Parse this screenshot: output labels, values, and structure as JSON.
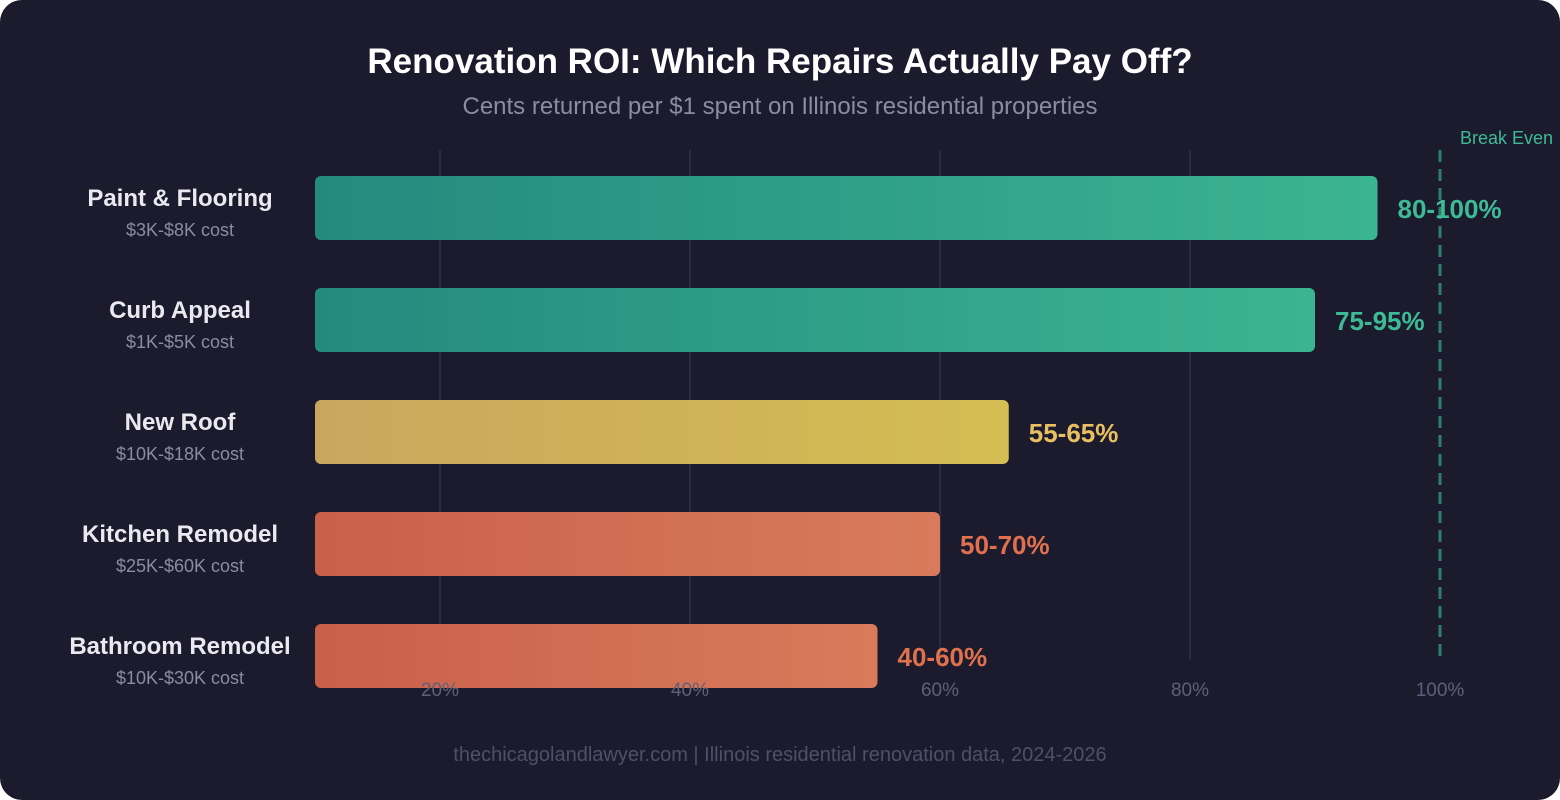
{
  "chart_data": {
    "type": "bar",
    "orientation": "horizontal",
    "title": "Renovation ROI: Which Repairs Actually Pay Off?",
    "subtitle": "Cents returned per $1 spent on Illinois residential properties",
    "categories": [
      "Paint & Flooring",
      "Curb Appeal",
      "New Roof",
      "Kitchen Remodel",
      "Bathroom Remodel"
    ],
    "cost_labels": [
      "$3K-$8K cost",
      "$1K-$5K cost",
      "$10K-$18K cost",
      "$25K-$60K cost",
      "$10K-$30K cost"
    ],
    "values": [
      95,
      90,
      65.5,
      60,
      55
    ],
    "data_labels": [
      "80-100%",
      "75-95%",
      "55-65%",
      "50-70%",
      "40-60%"
    ],
    "bar_start": 10,
    "colors": [
      "#3dbb94",
      "#3dbb94",
      "#e8c062",
      "#e0714f",
      "#e0714f"
    ],
    "gradients": [
      [
        "#248a7e",
        "#3bb492"
      ],
      [
        "#248a7e",
        "#3bb492"
      ],
      [
        "#c9a75e",
        "#d4bd52"
      ],
      [
        "#c9604a",
        "#d87b5b"
      ],
      [
        "#c9604a",
        "#d87b5b"
      ]
    ],
    "xticks": [
      20,
      40,
      60,
      80,
      100
    ],
    "xtick_labels": [
      "20%",
      "40%",
      "60%",
      "80%",
      "100%"
    ],
    "xlim": [
      0,
      100
    ],
    "grid": true,
    "reference_line": {
      "value": 100,
      "label": "Break Even",
      "color": "#3dbb94",
      "style": "dashed"
    }
  },
  "footer": "thechicagolandlawyer.com | Illinois residential renovation data, 2024-2026"
}
